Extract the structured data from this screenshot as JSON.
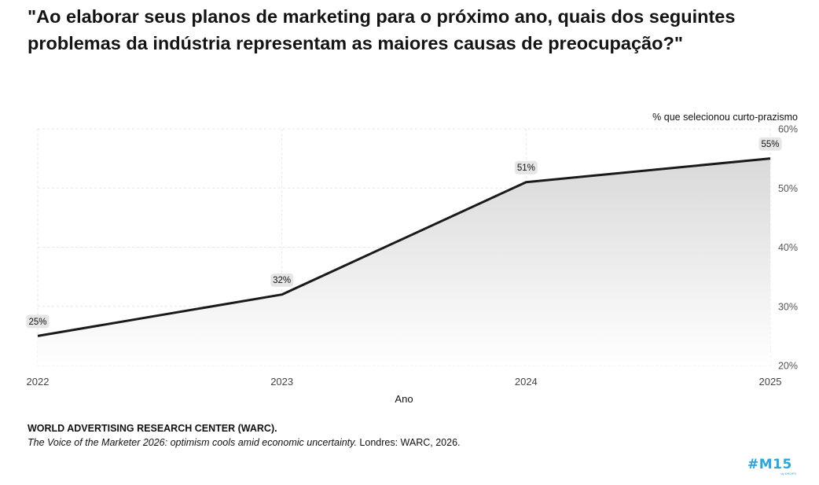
{
  "title": {
    "line1": "\"Ao elaborar seus planos de marketing para o próximo ano, quais dos seguintes",
    "line2": "problemas da indústria representam as maiores causas de preocupação?\""
  },
  "chart_data": {
    "type": "area",
    "ylabel": "% que selecionou curto-prazismo",
    "xlabel": "Ano",
    "categories": [
      "2022",
      "2023",
      "2024",
      "2025"
    ],
    "values": [
      25,
      32,
      51,
      55
    ],
    "data_labels": [
      "25%",
      "32%",
      "51%",
      "55%"
    ],
    "ylim": [
      20,
      60
    ],
    "yticks": [
      20,
      30,
      40,
      50,
      60
    ],
    "ytick_labels": [
      "20%",
      "30%",
      "40%",
      "50%",
      "60%"
    ],
    "grid": true,
    "y_axis_side": "right",
    "colors": {
      "line": "#1a1a1a",
      "area_top": "#d9d9d9",
      "area_bottom": "#ffffff",
      "grid": "#e6e6e6",
      "label_bg": "#e6e6e6"
    }
  },
  "source": {
    "org": "WORLD ADVERTISING RESEARCH CENTER (WARC).",
    "publication": "The Voice of the Marketer 2026: optimism cools amid economic uncertainty.",
    "details": " Londres: WARC, 2026."
  },
  "logo": {
    "text": "#M15",
    "subtext": "by DROPS"
  }
}
